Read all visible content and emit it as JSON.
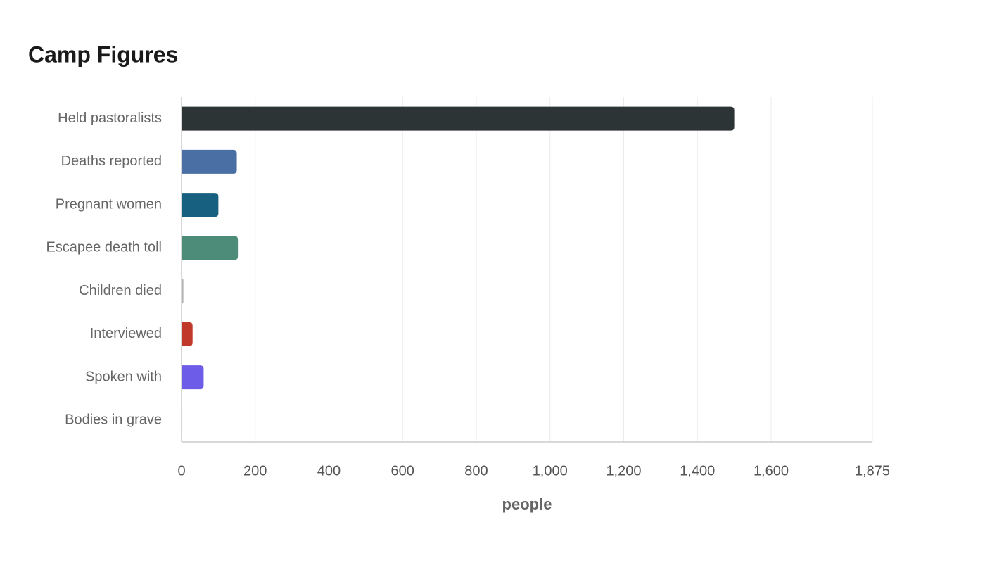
{
  "chart_data": {
    "type": "hbar",
    "title": "Camp Figures",
    "categories": [
      "Held pastoralists",
      "Deaths reported",
      "Pregnant women",
      "Escapee death toll",
      "Children died",
      "Interviewed",
      "Spoken with",
      "Bodies in grave"
    ],
    "values": [
      1500,
      150,
      100,
      153,
      5,
      30,
      60,
      2
    ],
    "colors": [
      "#2d3436",
      "#4a6fa5",
      "#17607f",
      "#4e8c7a",
      "#b2b2b2",
      "#c0392b",
      "#6c5ce7",
      "#d3d3d3"
    ],
    "xlim": [
      0,
      1875
    ],
    "xticks": [
      0,
      200,
      400,
      600,
      800,
      {
        "value": 1000,
        "label": "1,000"
      },
      {
        "value": 1200,
        "label": "1,200"
      },
      {
        "value": 1400,
        "label": "1,400"
      },
      {
        "value": 1600,
        "label": "1,600"
      },
      {
        "value": 1875,
        "label": "1,875"
      }
    ],
    "x_label": "people",
    "grid": true
  }
}
